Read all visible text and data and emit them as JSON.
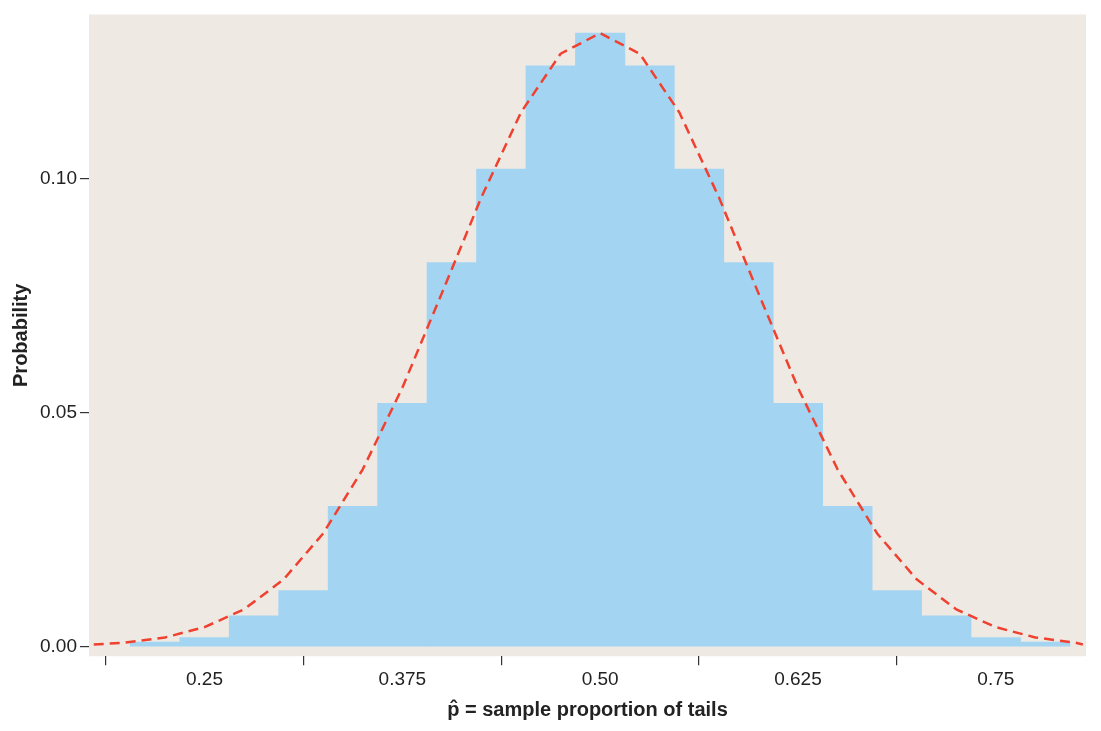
{
  "chart_data": {
    "type": "histogram",
    "xlabel": "p̂ = sample proportion of tails",
    "ylabel": "Probability",
    "bins": [
      0.203125,
      0.234375,
      0.265625,
      0.296875,
      0.328125,
      0.359375,
      0.390625,
      0.421875,
      0.453125,
      0.484375,
      0.515625,
      0.546875,
      0.578125,
      0.609375,
      0.640625,
      0.671875,
      0.703125,
      0.734375,
      0.765625,
      0.796875
    ],
    "series": [
      {
        "type": "histogram",
        "color": "#a3d5f2",
        "values": [
          0.001,
          0.002,
          0.0066,
          0.012,
          0.03,
          0.052,
          0.082,
          0.102,
          0.124,
          0.131,
          0.124,
          0.102,
          0.082,
          0.052,
          0.03,
          0.012,
          0.0066,
          0.002,
          0.001
        ]
      },
      {
        "type": "line",
        "color": "#f0402f",
        "line_style": "dashed",
        "marker": "none",
        "x": [
          0.18,
          0.2,
          0.225,
          0.25,
          0.275,
          0.3,
          0.325,
          0.35,
          0.375,
          0.4,
          0.425,
          0.45,
          0.475,
          0.5,
          0.525,
          0.55,
          0.575,
          0.6,
          0.625,
          0.65,
          0.675,
          0.7,
          0.725,
          0.75,
          0.775,
          0.8,
          0.805
        ],
        "values": [
          0.0005,
          0.0009,
          0.002,
          0.0042,
          0.008,
          0.0144,
          0.0242,
          0.0379,
          0.0553,
          0.0755,
          0.096,
          0.1141,
          0.1266,
          0.131,
          0.1266,
          0.1141,
          0.096,
          0.0755,
          0.0553,
          0.0379,
          0.0242,
          0.0144,
          0.008,
          0.0042,
          0.002,
          0.0009,
          0.0005
        ]
      }
    ],
    "xlim": [
      0.177,
      0.807
    ],
    "ylim": [
      -0.002,
      0.135
    ],
    "xticks": [
      0.25,
      0.375,
      {
        "value": 0.5,
        "label": "0.50"
      },
      0.625,
      0.75
    ],
    "yticks": [
      {
        "value": 0,
        "label": "0.00"
      },
      0.05,
      {
        "value": 0.1,
        "label": "0.10"
      }
    ],
    "grid": false,
    "legend": false
  }
}
